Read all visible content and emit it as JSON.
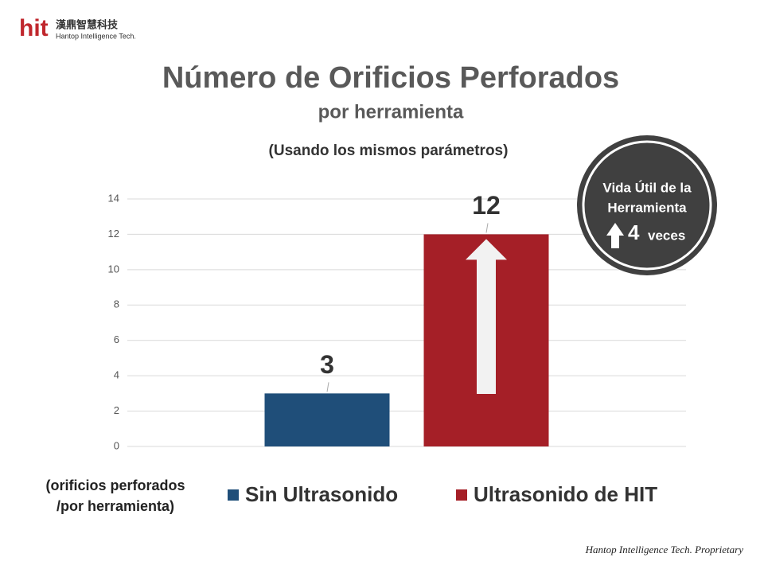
{
  "logo": {
    "mark": "hit",
    "name": "漢鼎智慧科技",
    "english": "Hantop Intelligence Tech."
  },
  "chart_data": {
    "type": "bar",
    "title": "Número de Orificios Perforados",
    "subtitle": "por herramienta",
    "annotation": "(Usando los mismos parámetros)",
    "y_label": [
      "(orificios perforados",
      "/por herramienta)"
    ],
    "categories": [
      null
    ],
    "series": [
      {
        "name": "Sin Ultrasonido",
        "color": "#1f4e79",
        "values": [
          3
        ]
      },
      {
        "name": "Ultrasonido de HIT",
        "color": "#a51f27",
        "values": [
          12
        ]
      }
    ],
    "ylim": [
      0,
      14
    ],
    "yticks": [
      0,
      2,
      4,
      6,
      8,
      10,
      12,
      14
    ],
    "grid": true,
    "legend": "bottom"
  },
  "badge": {
    "line1": "Vida Útil de la",
    "line2": "Herramienta",
    "factor": 4,
    "unit": "veces"
  },
  "footer": "Hantop Intelligence Tech. Proprietary"
}
